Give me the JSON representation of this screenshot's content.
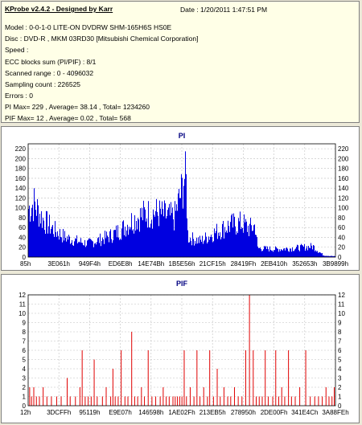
{
  "info": {
    "title": "KProbe v2.4.2 - Designed by Karr",
    "date": "Date : 1/20/2011 1:47:51 PM",
    "model": "Model : 0-0-1-0 LITE-ON DVDRW SHM-165H6S HS0E",
    "disc": "Disc : DVD-R , MKM 03RD30  [Mitsubishi Chemical Corporation]",
    "speed": "Speed :",
    "ecc": "ECC blocks sum (PI/PIF) : 8/1",
    "scanned": "Scanned range : 0 - 4096032",
    "sampling": "Sampling count : 226525",
    "errors": "Errors : 0",
    "pi_stats": "PI Max= 229 , Average= 38.14 , Total= 1234260",
    "pif_stats": "PIF Max= 12 , Average= 0.02 , Total= 568"
  },
  "colors": {
    "pi_series": "#0000e0",
    "pif_series": "#e00000",
    "title": "#000080",
    "grid": "#c0c0c0"
  },
  "chart_data": [
    {
      "type": "bar",
      "title": "PI",
      "ylim": [
        0,
        230
      ],
      "yticks": [
        0,
        20,
        40,
        60,
        80,
        100,
        120,
        140,
        160,
        180,
        200,
        220
      ],
      "ytick_labels": [
        "0",
        "20",
        "40",
        "60",
        "80",
        "100",
        "120",
        "140",
        "160",
        "180",
        "200",
        "220"
      ],
      "xlim": [
        133,
        4096032
      ],
      "xtick_labels": [
        "85h",
        "3E061h",
        "949F4h",
        "ED6E8h",
        "14E74Bh",
        "1B5E56h",
        "21CF15h",
        "28419Fh",
        "2EB410h",
        "352653h",
        "3B9899h"
      ],
      "grid": true,
      "series": [
        {
          "color": "#0000e0",
          "envelope": [
            [
              0,
              135
            ],
            [
              80000,
              150
            ],
            [
              200000,
              105
            ],
            [
              350000,
              75
            ],
            [
              500000,
              55
            ],
            [
              650000,
              45
            ],
            [
              800000,
              38
            ],
            [
              950000,
              48
            ],
            [
              1100000,
              60
            ],
            [
              1250000,
              78
            ],
            [
              1400000,
              105
            ],
            [
              1550000,
              120
            ],
            [
              1700000,
              125
            ],
            [
              1850000,
              115
            ],
            [
              1950000,
              110
            ],
            [
              2000000,
              150
            ],
            [
              2050000,
              185
            ],
            [
              2080000,
              229
            ],
            [
              2110000,
              205
            ],
            [
              2130000,
              55
            ],
            [
              2300000,
              45
            ],
            [
              2500000,
              70
            ],
            [
              2700000,
              90
            ],
            [
              2850000,
              95
            ],
            [
              2950000,
              80
            ],
            [
              3030000,
              88
            ],
            [
              3060000,
              25
            ],
            [
              3300000,
              22
            ],
            [
              3550000,
              25
            ],
            [
              3800000,
              30
            ],
            [
              3880000,
              15
            ],
            [
              3940000,
              5
            ],
            [
              4096032,
              2
            ]
          ]
        }
      ]
    },
    {
      "type": "bar",
      "title": "PIF",
      "ylim": [
        0,
        12
      ],
      "yticks": [
        0,
        1,
        2,
        3,
        4,
        5,
        6,
        7,
        8,
        9,
        10,
        11,
        12
      ],
      "ytick_labels": [
        "0",
        "1",
        "2",
        "3",
        "4",
        "5",
        "6",
        "7",
        "8",
        "9",
        "10",
        "11",
        "12"
      ],
      "xlim": [
        18,
        4096032
      ],
      "xtick_labels": [
        "12h",
        "3DCFFh",
        "95119h",
        "E9E07h",
        "146598h",
        "1AE02Fh",
        "213EB5h",
        "278950h",
        "2DE00Fh",
        "341E4Ch",
        "3A88FEh"
      ],
      "grid": true,
      "series": [
        {
          "color": "#e00000",
          "bars": [
            [
              20000,
              2
            ],
            [
              45000,
              1
            ],
            [
              75000,
              2
            ],
            [
              110000,
              1
            ],
            [
              150000,
              1
            ],
            [
              200000,
              2
            ],
            [
              250000,
              1
            ],
            [
              310000,
              1
            ],
            [
              380000,
              1
            ],
            [
              440000,
              1
            ],
            [
              520000,
              3
            ],
            [
              560000,
              1
            ],
            [
              630000,
              1
            ],
            [
              690000,
              2
            ],
            [
              720000,
              6
            ],
            [
              760000,
              1
            ],
            [
              800000,
              1
            ],
            [
              840000,
              1
            ],
            [
              880000,
              5
            ],
            [
              920000,
              1
            ],
            [
              990000,
              1
            ],
            [
              1040000,
              2
            ],
            [
              1100000,
              1
            ],
            [
              1130000,
              4
            ],
            [
              1160000,
              1
            ],
            [
              1200000,
              1
            ],
            [
              1240000,
              6
            ],
            [
              1290000,
              1
            ],
            [
              1330000,
              1
            ],
            [
              1380000,
              8
            ],
            [
              1420000,
              1
            ],
            [
              1460000,
              1
            ],
            [
              1510000,
              2
            ],
            [
              1550000,
              1
            ],
            [
              1600000,
              6
            ],
            [
              1650000,
              1
            ],
            [
              1700000,
              1
            ],
            [
              1760000,
              1
            ],
            [
              1800000,
              2
            ],
            [
              1840000,
              1
            ],
            [
              1880000,
              1
            ],
            [
              1930000,
              1
            ],
            [
              1960000,
              1
            ],
            [
              1990000,
              1
            ],
            [
              2020000,
              1
            ],
            [
              2050000,
              1
            ],
            [
              2080000,
              6
            ],
            [
              2110000,
              1
            ],
            [
              2160000,
              2
            ],
            [
              2210000,
              1
            ],
            [
              2250000,
              6
            ],
            [
              2290000,
              1
            ],
            [
              2340000,
              2
            ],
            [
              2390000,
              1
            ],
            [
              2420000,
              6
            ],
            [
              2470000,
              1
            ],
            [
              2520000,
              4
            ],
            [
              2560000,
              1
            ],
            [
              2610000,
              2
            ],
            [
              2660000,
              1
            ],
            [
              2700000,
              1
            ],
            [
              2750000,
              2
            ],
            [
              2800000,
              1
            ],
            [
              2850000,
              1
            ],
            [
              2900000,
              6
            ],
            [
              2950000,
              12
            ],
            [
              3000000,
              6
            ],
            [
              3040000,
              1
            ],
            [
              3080000,
              1
            ],
            [
              3120000,
              1
            ],
            [
              3160000,
              6
            ],
            [
              3200000,
              1
            ],
            [
              3260000,
              1
            ],
            [
              3300000,
              6
            ],
            [
              3340000,
              1
            ],
            [
              3380000,
              2
            ],
            [
              3420000,
              1
            ],
            [
              3470000,
              6
            ],
            [
              3510000,
              1
            ],
            [
              3560000,
              1
            ],
            [
              3620000,
              2
            ],
            [
              3700000,
              6
            ],
            [
              3760000,
              1
            ],
            [
              3820000,
              1
            ],
            [
              3870000,
              1
            ],
            [
              3920000,
              1
            ],
            [
              3970000,
              2
            ],
            [
              4010000,
              1
            ],
            [
              4050000,
              1
            ],
            [
              4080000,
              2
            ]
          ]
        }
      ]
    }
  ]
}
